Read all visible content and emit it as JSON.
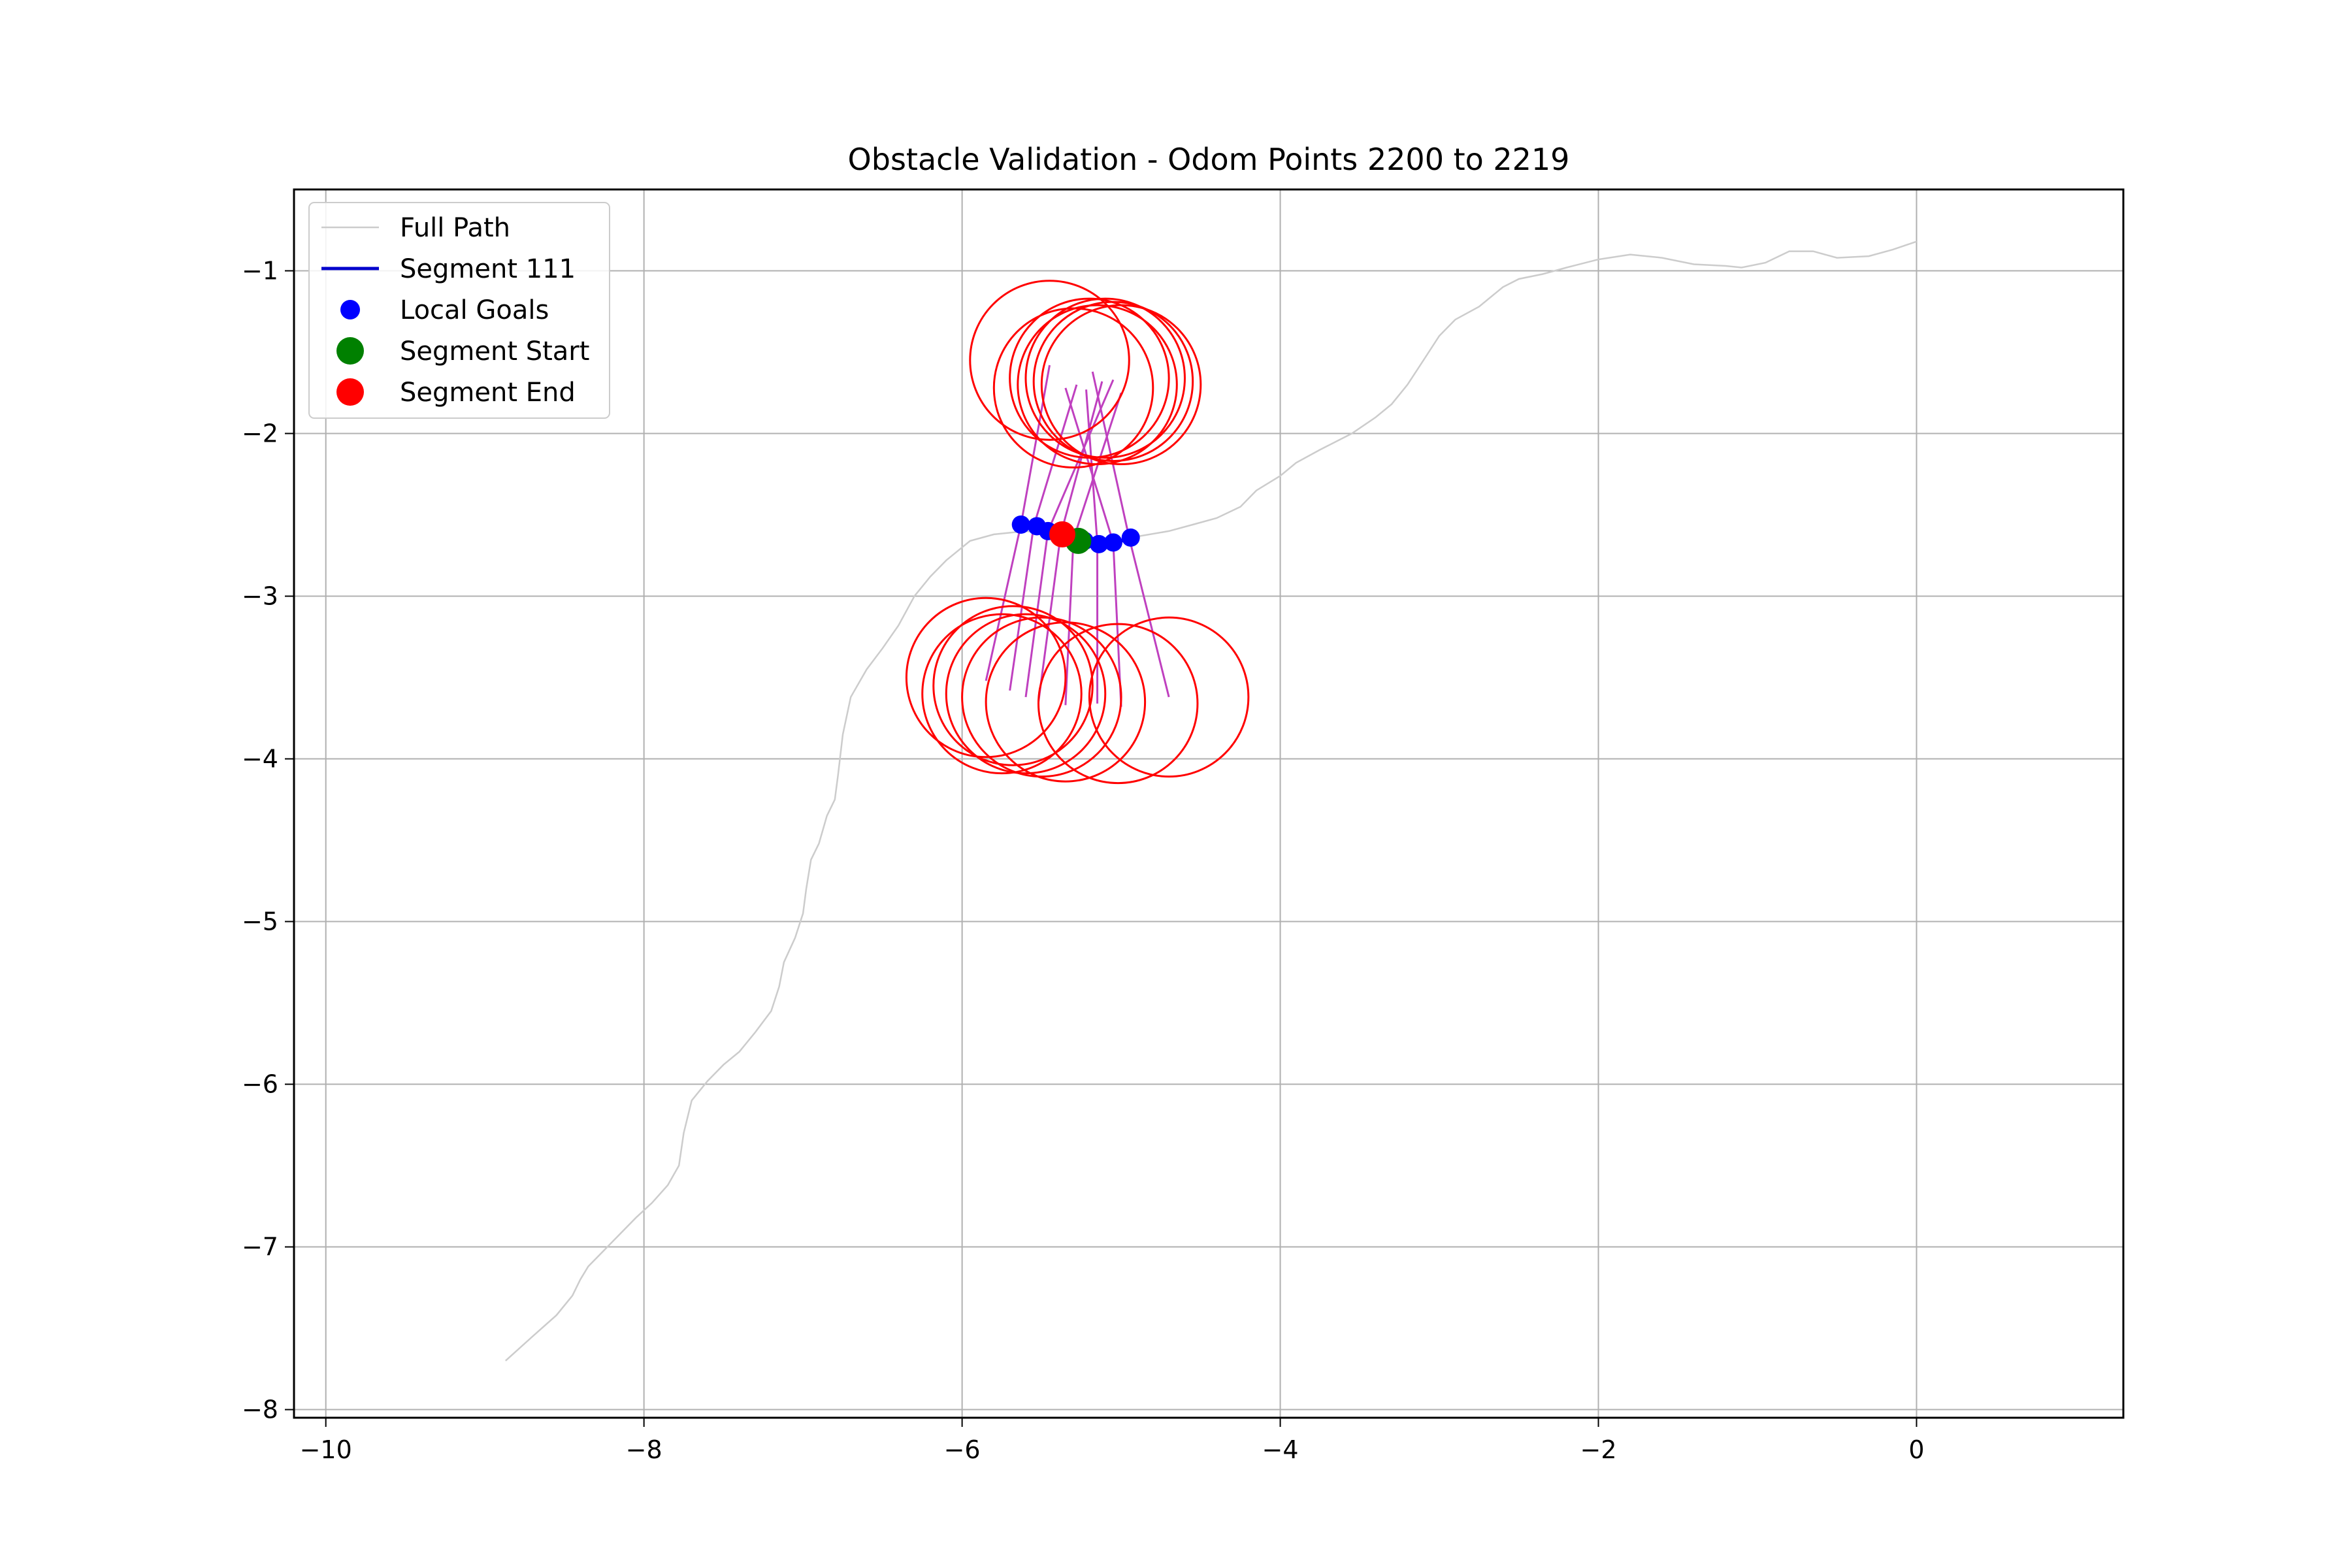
{
  "chart_data": {
    "type": "scatter",
    "title": "Obstacle Validation - Odom Points 2200 to 2219",
    "xlabel": "",
    "ylabel": "",
    "xlim": [
      -10.2,
      1.3
    ],
    "ylim": [
      -8.05,
      -0.5
    ],
    "xticks": [
      -10,
      -8,
      -6,
      -4,
      -2,
      0
    ],
    "yticks": [
      -1,
      -2,
      -3,
      -4,
      -5,
      -6,
      -7,
      -8
    ],
    "xtick_labels": [
      "−10",
      "−8",
      "−6",
      "−4",
      "−2",
      "0"
    ],
    "ytick_labels": [
      "−1",
      "−2",
      "−3",
      "−4",
      "−5",
      "−6",
      "−7",
      "−8"
    ],
    "grid": true,
    "legend_position": "top-left",
    "legend": [
      {
        "key": "full_path",
        "label": "Full Path"
      },
      {
        "key": "segment",
        "label": "Segment 111"
      },
      {
        "key": "local_goals",
        "label": "Local Goals"
      },
      {
        "key": "segment_start",
        "label": "Segment Start"
      },
      {
        "key": "segment_end",
        "label": "Segment End"
      }
    ],
    "colors": {
      "full_path": "#cccccc",
      "segment": "#0000cc",
      "local_goals": "#0000ff",
      "segment_start": "#008000",
      "segment_end": "#ff0000",
      "obstacle_circles": "#ff0000",
      "rays": "#bf40bf"
    },
    "full_path": [
      [
        -8.87,
        -7.7
      ],
      [
        -8.7,
        -7.55
      ],
      [
        -8.55,
        -7.42
      ],
      [
        -8.45,
        -7.3
      ],
      [
        -8.4,
        -7.2
      ],
      [
        -8.35,
        -7.12
      ],
      [
        -8.25,
        -7.02
      ],
      [
        -8.15,
        -6.92
      ],
      [
        -8.05,
        -6.82
      ],
      [
        -7.95,
        -6.73
      ],
      [
        -7.85,
        -6.62
      ],
      [
        -7.78,
        -6.5
      ],
      [
        -7.75,
        -6.3
      ],
      [
        -7.7,
        -6.1
      ],
      [
        -7.6,
        -5.98
      ],
      [
        -7.5,
        -5.88
      ],
      [
        -7.4,
        -5.8
      ],
      [
        -7.3,
        -5.68
      ],
      [
        -7.2,
        -5.55
      ],
      [
        -7.15,
        -5.4
      ],
      [
        -7.12,
        -5.25
      ],
      [
        -7.05,
        -5.1
      ],
      [
        -7.0,
        -4.95
      ],
      [
        -6.98,
        -4.8
      ],
      [
        -6.95,
        -4.62
      ],
      [
        -6.9,
        -4.52
      ],
      [
        -6.85,
        -4.35
      ],
      [
        -6.8,
        -4.25
      ],
      [
        -6.78,
        -4.1
      ],
      [
        -6.75,
        -3.85
      ],
      [
        -6.7,
        -3.62
      ],
      [
        -6.6,
        -3.45
      ],
      [
        -6.5,
        -3.32
      ],
      [
        -6.4,
        -3.18
      ],
      [
        -6.3,
        -3.0
      ],
      [
        -6.2,
        -2.88
      ],
      [
        -6.1,
        -2.78
      ],
      [
        -5.95,
        -2.66
      ],
      [
        -5.8,
        -2.62
      ],
      [
        -5.6,
        -2.6
      ],
      [
        -5.3,
        -2.64
      ],
      [
        -5.0,
        -2.65
      ],
      [
        -4.7,
        -2.6
      ],
      [
        -4.55,
        -2.56
      ],
      [
        -4.4,
        -2.52
      ],
      [
        -4.25,
        -2.45
      ],
      [
        -4.15,
        -2.35
      ],
      [
        -4.0,
        -2.26
      ],
      [
        -3.9,
        -2.18
      ],
      [
        -3.75,
        -2.1
      ],
      [
        -3.55,
        -2.0
      ],
      [
        -3.4,
        -1.9
      ],
      [
        -3.3,
        -1.82
      ],
      [
        -3.2,
        -1.7
      ],
      [
        -3.1,
        -1.55
      ],
      [
        -3.0,
        -1.4
      ],
      [
        -2.9,
        -1.3
      ],
      [
        -2.75,
        -1.22
      ],
      [
        -2.6,
        -1.1
      ],
      [
        -2.5,
        -1.05
      ],
      [
        -2.35,
        -1.02
      ],
      [
        -2.2,
        -0.98
      ],
      [
        -2.0,
        -0.93
      ],
      [
        -1.8,
        -0.9
      ],
      [
        -1.6,
        -0.92
      ],
      [
        -1.4,
        -0.96
      ],
      [
        -1.2,
        -0.97
      ],
      [
        -1.1,
        -0.98
      ],
      [
        -0.95,
        -0.95
      ],
      [
        -0.8,
        -0.88
      ],
      [
        -0.65,
        -0.88
      ],
      [
        -0.5,
        -0.92
      ],
      [
        -0.3,
        -0.91
      ],
      [
        -0.15,
        -0.87
      ],
      [
        0.0,
        -0.82
      ]
    ],
    "segment": [
      [
        -5.62,
        -2.56
      ],
      [
        -5.55,
        -2.57
      ],
      [
        -5.48,
        -2.59
      ],
      [
        -5.42,
        -2.61
      ],
      [
        -5.36,
        -2.63
      ],
      [
        -5.3,
        -2.65
      ],
      [
        -5.22,
        -2.66
      ],
      [
        -5.15,
        -2.67
      ],
      [
        -5.08,
        -2.67
      ],
      [
        -5.0,
        -2.66
      ],
      [
        -4.95,
        -2.65
      ]
    ],
    "local_goals": [
      [
        -5.63,
        -2.56
      ],
      [
        -5.53,
        -2.57
      ],
      [
        -5.46,
        -2.6
      ],
      [
        -5.4,
        -2.61
      ],
      [
        -5.35,
        -2.62
      ],
      [
        -5.29,
        -2.65
      ],
      [
        -5.23,
        -2.66
      ],
      [
        -5.14,
        -2.68
      ],
      [
        -5.05,
        -2.67
      ],
      [
        -4.94,
        -2.64
      ]
    ],
    "segment_start": [
      -5.27,
      -2.66
    ],
    "segment_end": [
      -5.37,
      -2.62
    ],
    "obstacle_radius": 0.5,
    "obstacles_top": [
      [
        -5.45,
        -1.55
      ],
      [
        -5.3,
        -1.72
      ],
      [
        -5.2,
        -1.66
      ],
      [
        -5.15,
        -1.7
      ],
      [
        -5.1,
        -1.66
      ],
      [
        -5.05,
        -1.68
      ],
      [
        -5.0,
        -1.7
      ]
    ],
    "obstacles_bottom": [
      [
        -5.85,
        -3.5
      ],
      [
        -5.75,
        -3.6
      ],
      [
        -5.68,
        -3.55
      ],
      [
        -5.6,
        -3.6
      ],
      [
        -5.5,
        -3.62
      ],
      [
        -5.35,
        -3.65
      ],
      [
        -5.02,
        -3.66
      ],
      [
        -4.7,
        -3.62
      ]
    ],
    "rays": [
      [
        [
          -5.63,
          -2.56
        ],
        [
          -5.45,
          -1.58
        ]
      ],
      [
        [
          -5.55,
          -2.57
        ],
        [
          -5.28,
          -1.7
        ]
      ],
      [
        [
          -5.46,
          -2.6
        ],
        [
          -5.05,
          -1.67
        ]
      ],
      [
        [
          -5.38,
          -2.62
        ],
        [
          -5.12,
          -1.68
        ]
      ],
      [
        [
          -5.3,
          -2.65
        ],
        [
          -5.0,
          -1.75
        ]
      ],
      [
        [
          -5.15,
          -2.67
        ],
        [
          -5.22,
          -1.73
        ]
      ],
      [
        [
          -5.05,
          -2.67
        ],
        [
          -5.35,
          -1.72
        ]
      ],
      [
        [
          -4.95,
          -2.64
        ],
        [
          -5.18,
          -1.62
        ]
      ],
      [
        [
          -5.63,
          -2.56
        ],
        [
          -5.85,
          -3.52
        ]
      ],
      [
        [
          -5.55,
          -2.57
        ],
        [
          -5.7,
          -3.58
        ]
      ],
      [
        [
          -5.46,
          -2.6
        ],
        [
          -5.6,
          -3.62
        ]
      ],
      [
        [
          -5.38,
          -2.62
        ],
        [
          -5.52,
          -3.65
        ]
      ],
      [
        [
          -5.3,
          -2.65
        ],
        [
          -5.35,
          -3.67
        ]
      ],
      [
        [
          -5.15,
          -2.67
        ],
        [
          -5.15,
          -3.66
        ]
      ],
      [
        [
          -5.05,
          -2.67
        ],
        [
          -5.0,
          -3.68
        ]
      ],
      [
        [
          -4.95,
          -2.64
        ],
        [
          -4.7,
          -3.62
        ]
      ]
    ]
  }
}
